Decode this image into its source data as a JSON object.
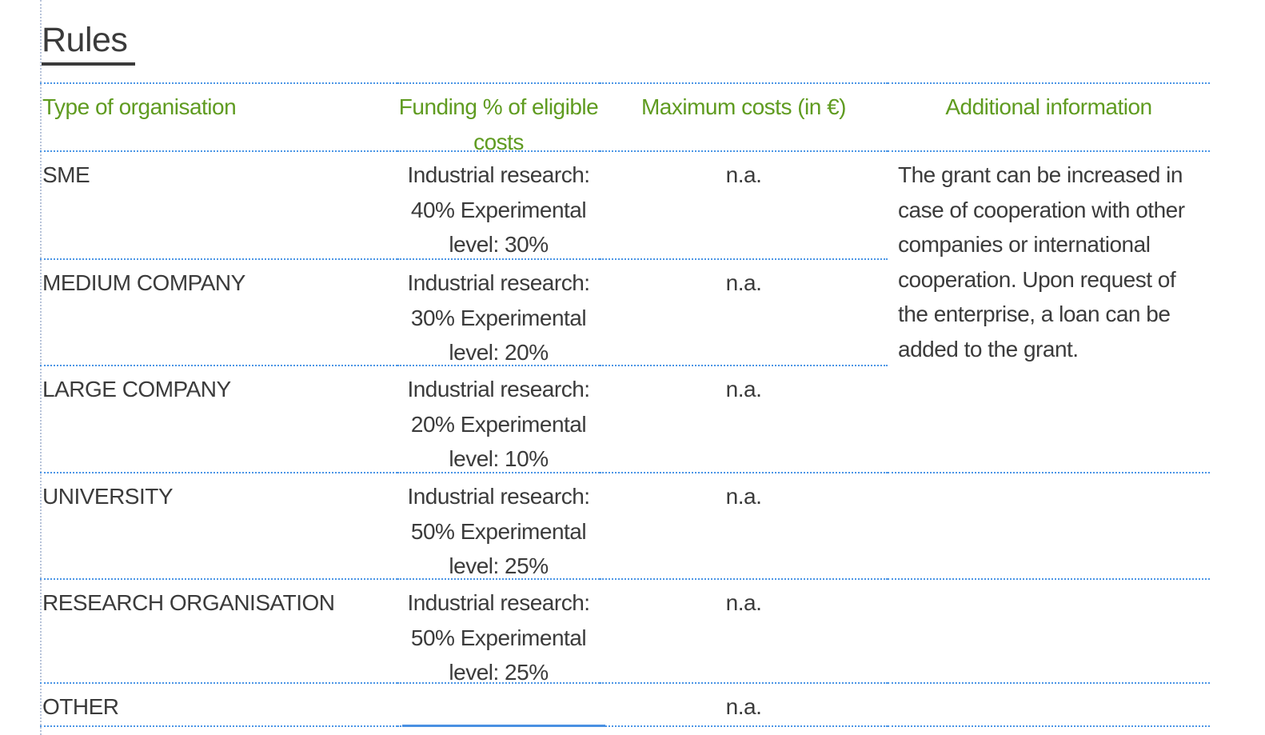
{
  "page": {
    "title": "Rules"
  },
  "table": {
    "headers": [
      {
        "label": "Type of organisation"
      },
      {
        "label": "Funding % of eligible\ncosts"
      },
      {
        "label": "Maximum costs (in €)"
      },
      {
        "label": "Additional information"
      }
    ],
    "rows": [
      {
        "type": "SME",
        "funding": "Industrial research:\n40% Experimental\nlevel: 30%",
        "max_costs": "n.a."
      },
      {
        "type": "MEDIUM COMPANY",
        "funding": "Industrial research:\n30% Experimental\nlevel: 20%",
        "max_costs": "n.a."
      },
      {
        "type": "LARGE COMPANY",
        "funding": "Industrial research:\n20% Experimental\nlevel: 10%",
        "max_costs": "n.a."
      },
      {
        "type": "UNIVERSITY",
        "funding": "Industrial research:\n50% Experimental\nlevel: 25%",
        "max_costs": "n.a."
      },
      {
        "type": "RESEARCH ORGANISATION",
        "funding": "Industrial research:\n50% Experimental\nlevel: 25%",
        "max_costs": "n.a."
      },
      {
        "type": "OTHER",
        "funding": "",
        "max_costs": "n.a."
      }
    ],
    "additional_info": "The grant can be increased in\ncase of cooperation with other\ncompanies or international\ncooperation. Upon request of\nthe enterprise, a loan can be\nadded to the grant."
  },
  "colors": {
    "text": "#3b3b3b",
    "header_green": "#5f9b20",
    "border_blue": "#4a95e6",
    "guide_line": "#b7c3d9",
    "solid_blue": "#4a90e2"
  }
}
